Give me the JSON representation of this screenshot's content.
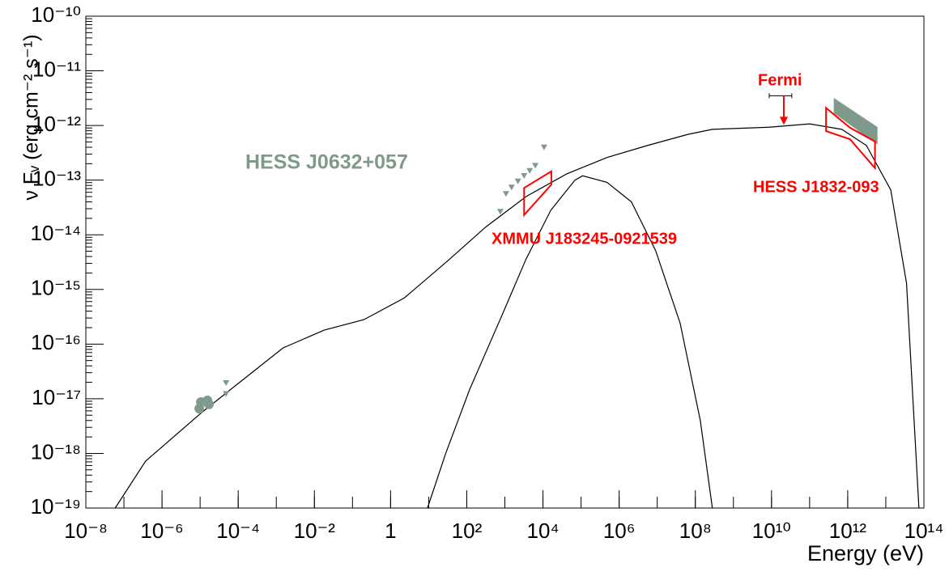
{
  "chart_data": {
    "type": "line",
    "x_label": "Energy  (eV)",
    "y_label": "ν Fᵥ  (erg cm⁻² s⁻¹)",
    "log_x": true,
    "log_y": true,
    "xlim": [
      1e-08,
      100000000000000.0
    ],
    "ylim": [
      1e-19,
      1e-10
    ],
    "xticks": [
      {
        "value": 1e-08,
        "label": "10⁻⁸"
      },
      {
        "value": 1e-06,
        "label": "10⁻⁶"
      },
      {
        "value": 0.0001,
        "label": "10⁻⁴"
      },
      {
        "value": 0.01,
        "label": "10⁻²"
      },
      1,
      {
        "value": 100,
        "label": "10²"
      },
      {
        "value": 10000,
        "label": "10⁴"
      },
      {
        "value": 1000000.0,
        "label": "10⁶"
      },
      {
        "value": 100000000.0,
        "label": "10⁸"
      },
      {
        "value": 10000000000.0,
        "label": "10¹⁰"
      },
      {
        "value": 1000000000000.0,
        "label": "10¹²"
      },
      {
        "value": 100000000000000.0,
        "label": "10¹⁴"
      }
    ],
    "yticks": [
      {
        "value": 1e-19,
        "label": "10⁻¹⁹"
      },
      {
        "value": 1e-18,
        "label": "10⁻¹⁸"
      },
      {
        "value": 1e-17,
        "label": "10⁻¹⁷"
      },
      {
        "value": 1e-16,
        "label": "10⁻¹⁶"
      },
      {
        "value": 1e-15,
        "label": "10⁻¹⁵"
      },
      {
        "value": 1e-14,
        "label": "10⁻¹⁴"
      },
      {
        "value": 1e-13,
        "label": "10⁻¹³"
      },
      {
        "value": 1e-12,
        "label": "10⁻¹²"
      },
      {
        "value": 1e-11,
        "label": "10⁻¹¹"
      },
      {
        "value": 1e-10,
        "label": "10⁻¹⁰"
      }
    ],
    "series": [
      {
        "color": "#000000",
        "x": [
          5.9e-08,
          3.7e-07,
          1.1e-05,
          0.00013,
          0.0015,
          0.018,
          0.2,
          2.3,
          28,
          320,
          3600,
          42000.0,
          480000.0,
          5500000.0,
          65000000.0,
          280000000.0,
          8700000000.0,
          100000000000.0,
          700000000000.0,
          3100000000000.0,
          13500000000000.0,
          35000000000000.0,
          74000000000000.0
        ],
        "values": [
          1e-19,
          7.2e-19,
          5.6e-18,
          2.2e-17,
          8.5e-17,
          1.8e-16,
          2.8e-16,
          7e-16,
          3.1e-15,
          1.4e-14,
          5e-14,
          1.3e-13,
          2.6e-13,
          4.3e-13,
          6.9e-13,
          8.5e-13,
          9.3e-13,
          1.07e-12,
          8.5e-13,
          4.3e-13,
          6.6e-14,
          1.3e-15,
          1e-19
        ]
      },
      {
        "color": "#000000",
        "x": [
          9.3,
          28,
          120,
          830,
          3600,
          16000.0,
          69000.0,
          110000.0,
          480000.0,
          2100000.0,
          9100000.0,
          40000000.0,
          135000000.0,
          280000000.0
        ],
        "values": [
          1e-19,
          1e-18,
          1.5e-17,
          3.3e-16,
          3.6e-15,
          2.8e-14,
          1e-13,
          1.2e-13,
          9.1e-14,
          4e-14,
          5.1e-15,
          2.4e-16,
          4e-18,
          1e-19
        ]
      }
    ],
    "points": [
      {
        "color": "#7f9a8a",
        "marker": "circle",
        "x": [
          1.05e-05,
          1.55e-05,
          1.7e-05,
          9.5e-06
        ],
        "values": [
          8.7e-18,
          9.3e-18,
          7.9e-18,
          6.6e-18
        ]
      },
      {
        "color": "#7f9a8a",
        "marker": "triangle",
        "x": [
          4.8e-05,
          4.8e-05,
          760,
          1070,
          1500,
          2200,
          3200,
          4500,
          6300,
          10700.0
        ],
        "values": [
          1.9e-17,
          1.2e-17,
          2.6e-14,
          5.5e-14,
          7.2e-14,
          9.3e-14,
          1.17e-13,
          1.45e-13,
          1.8e-13,
          3.9e-13
        ]
      }
    ],
    "band": {
      "color": "#7f9a8a",
      "x": [
        440000000000.0,
        5900000000000.0
      ],
      "upper": [
        3.1e-12,
        9.3e-13
      ],
      "lower": [
        1.7e-12,
        4.6e-13
      ]
    },
    "butterflies": [
      {
        "color": "#ff0000",
        "x": [
          3200,
          16600.0
        ],
        "upper": [
          7.2e-14,
          1.45e-13
        ],
        "lower": [
          2.3e-14,
          8.3e-14
        ]
      },
      {
        "color": "#ff0000",
        "x": [
          270000000000.0,
          1150000000000.0,
          5200000000000.0
        ],
        "upper": [
          2.1e-12,
          9.1e-13,
          5.1e-13
        ],
        "lower": [
          7.9e-13,
          5.6e-13,
          1.66e-13
        ]
      }
    ],
    "upper_limit": {
      "color": "#ff0000",
      "x": 21000000000.0,
      "x_range": [
        8700000000.0,
        34000000000.0
      ],
      "value": 3.5e-12
    },
    "annotations": [
      {
        "text": "HESS J0632+057",
        "color": "#7f9a8a"
      },
      {
        "text": "XMMU J183245-0921539",
        "color": "#ff0000"
      },
      {
        "text": "HESS J1832-093",
        "color": "#ff0000"
      },
      {
        "text": "Fermi",
        "color": "#ff0000"
      }
    ]
  }
}
